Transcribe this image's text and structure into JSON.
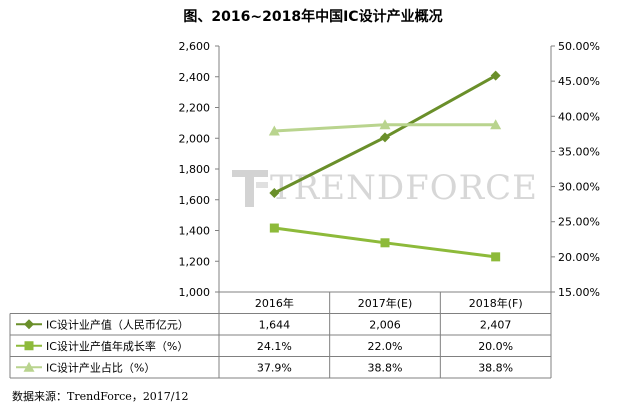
{
  "title": "图、2016~2018年中国IC设计产业概况",
  "source": "数据来源：TrendForce，2017/12",
  "watermark": "TRENDFORCE",
  "colors": {
    "revenue": "#6a8f2a",
    "growth": "#8dba3a",
    "share": "#b9d48e",
    "grid": "#d9d9d9",
    "axis": "#808080"
  },
  "chart_data": {
    "type": "line",
    "categories": [
      "2016年",
      "2017年(E)",
      "2018年(F)"
    ],
    "y_left": {
      "ticks": [
        "1,000",
        "1,200",
        "1,400",
        "1,600",
        "1,800",
        "2,000",
        "2,200",
        "2,400",
        "2,600"
      ],
      "range": [
        1000,
        2600
      ]
    },
    "y_right": {
      "ticks": [
        "15.00%",
        "20.00%",
        "25.00%",
        "30.00%",
        "35.00%",
        "40.00%",
        "45.00%",
        "50.00%"
      ],
      "range": [
        15,
        50
      ]
    },
    "series": [
      {
        "name": "IC设计业产值（人民币亿元）",
        "axis": "left",
        "marker": "diamond",
        "values": [
          1644,
          2006,
          2407
        ],
        "labels": [
          "1,644",
          "2,006",
          "2,407"
        ]
      },
      {
        "name": "IC设计业产值年成长率（%）",
        "axis": "right",
        "marker": "square",
        "values": [
          24.1,
          22.0,
          20.0
        ],
        "labels": [
          "24.1%",
          "22.0%",
          "20.0%"
        ]
      },
      {
        "name": "IC设计产业占比（%）",
        "axis": "right",
        "marker": "triangle",
        "values": [
          37.9,
          38.8,
          38.8
        ],
        "labels": [
          "37.9%",
          "38.8%",
          "38.8%"
        ]
      }
    ],
    "grid": false,
    "legend": "data-table"
  }
}
